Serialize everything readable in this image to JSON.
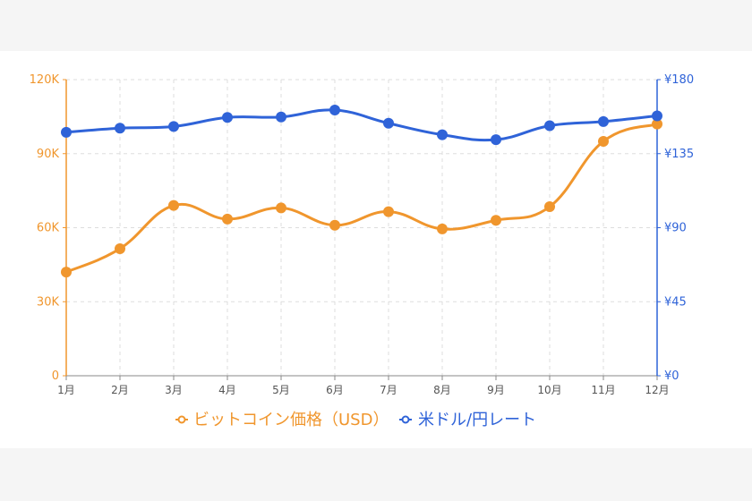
{
  "colors": {
    "btc": "#f0962d",
    "usdjpy": "#2f63d8",
    "grid": "#dddddd",
    "axis_x": "#888888"
  },
  "chart_data": {
    "type": "line",
    "categories": [
      "1月",
      "2月",
      "3月",
      "4月",
      "5月",
      "6月",
      "7月",
      "8月",
      "9月",
      "10月",
      "11月",
      "12月"
    ],
    "series": [
      {
        "name": "ビットコイン価格（USD）",
        "axis": "left",
        "values": [
          42000,
          51500,
          69000,
          63500,
          68000,
          61000,
          66500,
          59500,
          63000,
          68500,
          95000,
          102000
        ]
      },
      {
        "name": "米ドル/円レート",
        "axis": "right",
        "values": [
          148,
          150.5,
          151.5,
          157,
          157.3,
          161.5,
          153.5,
          146.5,
          143.5,
          152,
          154.5,
          158
        ]
      }
    ],
    "y_left": {
      "ylim": [
        0,
        120000
      ],
      "ticks": [
        "0",
        "30K",
        "60K",
        "90K",
        "120K"
      ]
    },
    "y_right": {
      "ylim": [
        0,
        180
      ],
      "ticks": [
        "¥0",
        "¥45",
        "¥90",
        "¥135",
        "¥180"
      ]
    },
    "grid": true,
    "legend_position": "bottom"
  }
}
